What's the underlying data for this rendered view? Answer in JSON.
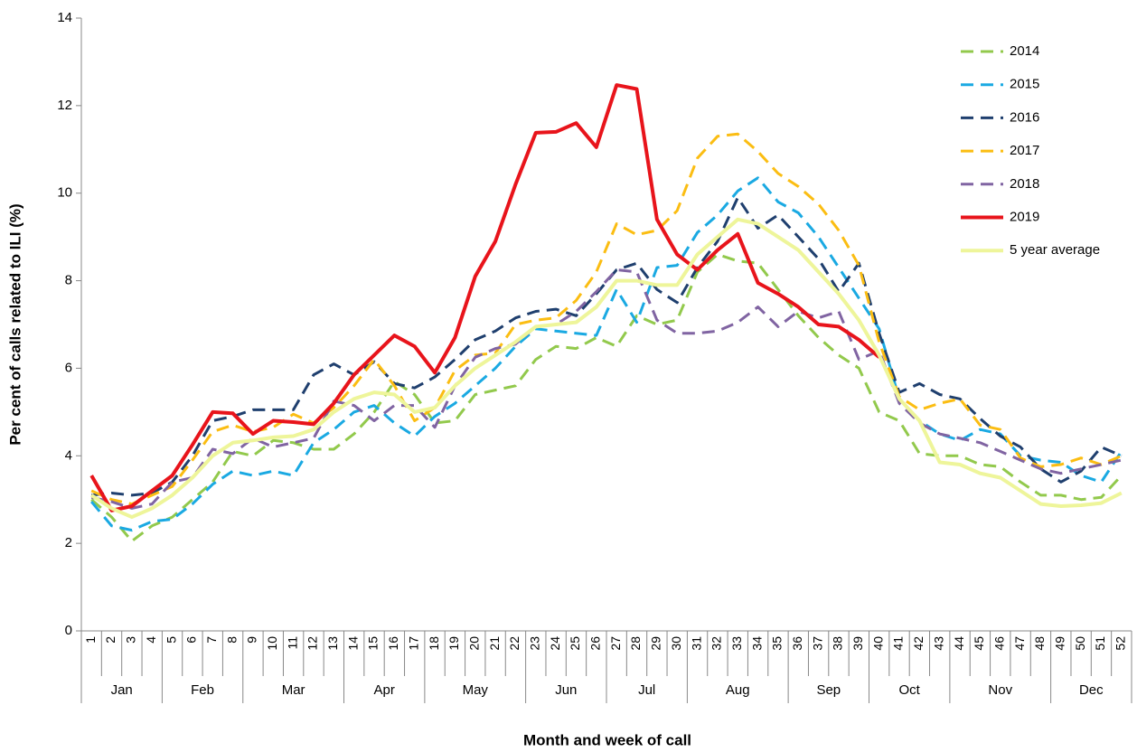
{
  "chart_data": {
    "type": "line",
    "y_label": "Per cent of calls related to ILI (%)",
    "x_label": "Month and week of call",
    "categories": [
      "1",
      "2",
      "3",
      "4",
      "5",
      "6",
      "7",
      "8",
      "9",
      "10",
      "11",
      "12",
      "13",
      "14",
      "15",
      "16",
      "17",
      "18",
      "19",
      "20",
      "21",
      "22",
      "23",
      "24",
      "25",
      "26",
      "27",
      "28",
      "29",
      "30",
      "31",
      "32",
      "33",
      "34",
      "35",
      "36",
      "37",
      "38",
      "39",
      "40",
      "41",
      "42",
      "43",
      "44",
      "45",
      "46",
      "47",
      "48",
      "49",
      "50",
      "51",
      "52"
    ],
    "months": [
      {
        "name": "Jan",
        "first_week": 1,
        "last_week": 4
      },
      {
        "name": "Feb",
        "first_week": 5,
        "last_week": 8
      },
      {
        "name": "Mar",
        "first_week": 9,
        "last_week": 13
      },
      {
        "name": "Apr",
        "first_week": 14,
        "last_week": 17
      },
      {
        "name": "May",
        "first_week": 18,
        "last_week": 22
      },
      {
        "name": "Jun",
        "first_week": 23,
        "last_week": 26
      },
      {
        "name": "Jul",
        "first_week": 27,
        "last_week": 30
      },
      {
        "name": "Aug",
        "first_week": 31,
        "last_week": 35
      },
      {
        "name": "Sep",
        "first_week": 36,
        "last_week": 39
      },
      {
        "name": "Oct",
        "first_week": 40,
        "last_week": 43
      },
      {
        "name": "Nov",
        "first_week": 44,
        "last_week": 48
      },
      {
        "name": "Dec",
        "first_week": 49,
        "last_week": 52
      }
    ],
    "ylim": [
      0,
      14
    ],
    "yticks": [
      0,
      2,
      4,
      6,
      8,
      10,
      12,
      14
    ],
    "grid": false,
    "legend": "right",
    "series": [
      {
        "name": "2014",
        "color": "#92c94c",
        "dashed": true,
        "values": [
          3.0,
          2.6,
          2.05,
          2.4,
          2.6,
          3.0,
          3.4,
          4.1,
          4.0,
          4.35,
          4.3,
          4.15,
          4.15,
          4.5,
          5.0,
          5.7,
          5.4,
          4.75,
          4.8,
          5.4,
          5.5,
          5.6,
          6.2,
          6.5,
          6.45,
          6.7,
          6.5,
          7.2,
          7.0,
          7.1,
          8.2,
          8.6,
          8.45,
          8.4,
          7.8,
          7.2,
          6.7,
          6.3,
          6.0,
          5.0,
          4.8,
          4.05,
          4.0,
          4.0,
          3.8,
          3.75,
          3.4,
          3.1,
          3.1,
          3.0,
          3.05,
          3.55
        ]
      },
      {
        "name": "2015",
        "color": "#1aa9e2",
        "dashed": true,
        "values": [
          2.95,
          2.4,
          2.3,
          2.5,
          2.55,
          2.9,
          3.35,
          3.65,
          3.55,
          3.65,
          3.55,
          4.3,
          4.6,
          5.0,
          5.15,
          4.75,
          4.45,
          4.9,
          5.2,
          5.6,
          6.0,
          6.5,
          6.9,
          6.85,
          6.8,
          6.75,
          7.8,
          7.05,
          8.3,
          8.35,
          9.1,
          9.5,
          10.05,
          10.35,
          9.8,
          9.55,
          9.0,
          8.3,
          7.6,
          6.9,
          5.3,
          4.8,
          4.5,
          4.35,
          4.6,
          4.5,
          4.0,
          3.9,
          3.85,
          3.55,
          3.4,
          4.1
        ]
      },
      {
        "name": "2016",
        "color": "#1f3f6e",
        "dashed": true,
        "values": [
          3.1,
          3.15,
          3.1,
          3.15,
          3.4,
          4.0,
          4.8,
          4.9,
          5.05,
          5.05,
          5.05,
          5.85,
          6.1,
          5.85,
          6.15,
          5.65,
          5.55,
          5.8,
          6.2,
          6.65,
          6.85,
          7.15,
          7.3,
          7.35,
          7.2,
          7.7,
          8.25,
          8.4,
          7.8,
          7.5,
          8.3,
          8.9,
          9.9,
          9.2,
          9.5,
          9.0,
          8.5,
          7.75,
          8.4,
          6.8,
          5.45,
          5.65,
          5.4,
          5.3,
          4.85,
          4.45,
          4.2,
          3.7,
          3.4,
          3.65,
          4.2,
          4.0
        ]
      },
      {
        "name": "2017",
        "color": "#fbbd12",
        "dashed": true,
        "values": [
          3.2,
          3.0,
          2.9,
          3.1,
          3.3,
          3.9,
          4.55,
          4.7,
          4.55,
          4.65,
          4.95,
          4.75,
          5.1,
          5.6,
          6.2,
          5.6,
          4.8,
          5.1,
          5.95,
          6.3,
          6.35,
          7.0,
          7.1,
          7.15,
          7.55,
          8.2,
          9.3,
          9.05,
          9.15,
          9.6,
          10.8,
          11.3,
          11.35,
          10.95,
          10.45,
          10.15,
          9.75,
          9.15,
          8.35,
          6.6,
          5.35,
          5.05,
          5.2,
          5.3,
          4.7,
          4.6,
          3.95,
          3.75,
          3.8,
          3.95,
          3.8,
          4.0
        ]
      },
      {
        "name": "2018",
        "color": "#8064a2",
        "dashed": true,
        "values": [
          3.05,
          2.95,
          2.8,
          2.9,
          3.4,
          3.5,
          4.15,
          4.05,
          4.4,
          4.2,
          4.3,
          4.4,
          5.25,
          5.15,
          4.8,
          5.15,
          5.15,
          4.65,
          5.6,
          6.25,
          6.45,
          6.55,
          6.95,
          7.0,
          7.3,
          7.75,
          8.25,
          8.2,
          7.1,
          6.8,
          6.8,
          6.85,
          7.05,
          7.4,
          6.95,
          7.3,
          7.15,
          7.3,
          6.2,
          6.4,
          5.2,
          4.75,
          4.5,
          4.4,
          4.3,
          4.1,
          3.9,
          3.7,
          3.6,
          3.7,
          3.8,
          3.9
        ]
      },
      {
        "name": "2019",
        "color": "#e8141b",
        "dashed": false,
        "values": [
          3.55,
          2.75,
          2.85,
          3.2,
          3.55,
          4.25,
          5.0,
          4.97,
          4.5,
          4.8,
          4.77,
          4.72,
          5.2,
          5.85,
          6.3,
          6.75,
          6.5,
          5.9,
          6.7,
          8.1,
          8.9,
          10.2,
          11.38,
          11.4,
          11.6,
          11.05,
          12.47,
          12.38,
          9.4,
          8.6,
          8.25,
          8.7,
          9.07,
          7.95,
          7.7,
          7.4,
          7.0,
          6.95,
          6.65,
          6.25,
          null,
          null,
          null,
          null,
          null,
          null,
          null,
          null,
          null,
          null,
          null,
          null
        ]
      },
      {
        "name": "5 year average",
        "color": "#eef59a",
        "dashed": false,
        "values": [
          3.1,
          2.8,
          2.6,
          2.8,
          3.1,
          3.5,
          4.0,
          4.3,
          4.35,
          4.42,
          4.45,
          4.6,
          5.0,
          5.3,
          5.45,
          5.4,
          5.0,
          5.1,
          5.6,
          6.0,
          6.3,
          6.6,
          6.95,
          7.0,
          7.05,
          7.4,
          8.0,
          8.0,
          7.9,
          7.9,
          8.6,
          9.0,
          9.4,
          9.3,
          9.0,
          8.7,
          8.2,
          7.7,
          7.1,
          6.3,
          5.3,
          4.8,
          3.85,
          3.8,
          3.6,
          3.5,
          3.2,
          2.9,
          2.85,
          2.87,
          2.92,
          3.15
        ]
      }
    ]
  }
}
